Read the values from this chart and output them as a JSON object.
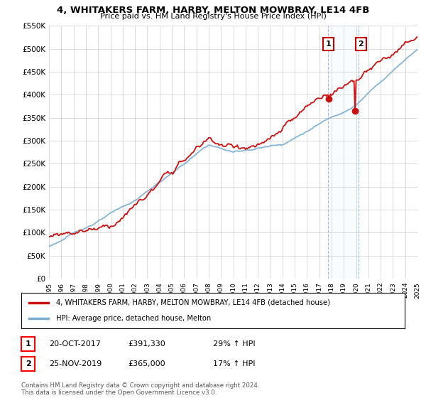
{
  "title": "4, WHITAKERS FARM, HARBY, MELTON MOWBRAY, LE14 4FB",
  "subtitle": "Price paid vs. HM Land Registry's House Price Index (HPI)",
  "ylabel_ticks": [
    "£0",
    "£50K",
    "£100K",
    "£150K",
    "£200K",
    "£250K",
    "£300K",
    "£350K",
    "£400K",
    "£450K",
    "£500K",
    "£550K"
  ],
  "ytick_values": [
    0,
    50000,
    100000,
    150000,
    200000,
    250000,
    300000,
    350000,
    400000,
    450000,
    500000,
    550000
  ],
  "x_start_year": 1995,
  "x_end_year": 2025,
  "hpi_color": "#7aadd4",
  "price_color": "#cc1111",
  "legend_label_red": "4, WHITAKERS FARM, HARBY, MELTON MOWBRAY, LE14 4FB (detached house)",
  "legend_label_blue": "HPI: Average price, detached house, Melton",
  "annotation1_label": "1",
  "annotation1_date": "20-OCT-2017",
  "annotation1_price": "£391,330",
  "annotation1_hpi": "29% ↑ HPI",
  "annotation1_year": 2017.8,
  "annotation1_value": 391330,
  "annotation2_label": "2",
  "annotation2_date": "25-NOV-2019",
  "annotation2_price": "£365,000",
  "annotation2_hpi": "17% ↑ HPI",
  "annotation2_year": 2019.9,
  "annotation2_value": 365000,
  "footnote": "Contains HM Land Registry data © Crown copyright and database right 2024.\nThis data is licensed under the Open Government Licence v3.0.",
  "bg_color": "#ffffff",
  "grid_color": "#cccccc",
  "highlight_box_color": "#ddeeff"
}
